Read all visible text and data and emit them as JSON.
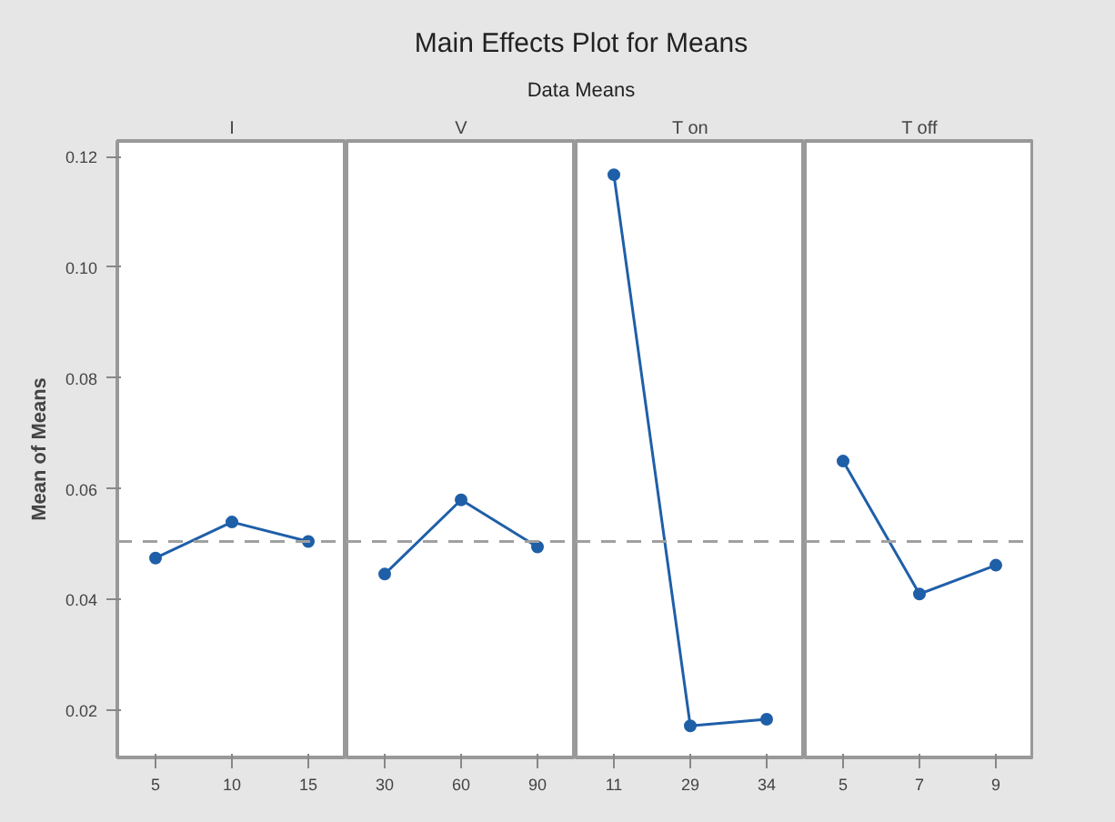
{
  "chart_data": [
    {
      "type": "line",
      "title": "I",
      "annotations": [
        "Main Effects Plot for Means",
        "Data Means"
      ],
      "ylabel": "Mean of Means",
      "categories": [
        "5",
        "10",
        "15"
      ],
      "series": [
        {
          "color": "#1f5fa8",
          "values": [
            0.0475,
            0.054,
            0.0505
          ]
        }
      ],
      "ylim": [
        0.0115,
        0.1228
      ],
      "yticks": [
        0.02,
        0.04,
        0.06,
        0.08,
        {
          "value": 0.1,
          "label": "0.10"
        },
        0.12
      ],
      "marker": "circle",
      "grid": false,
      "ref_lines": [
        {
          "axis": "y",
          "value": 0.0505,
          "color": "#a0a0a0",
          "line_style": "dashed"
        }
      ]
    },
    {
      "type": "line",
      "title": "V",
      "categories": [
        "30",
        "60",
        "90"
      ],
      "series": [
        {
          "color": "#1f5fa8",
          "values": [
            0.0446,
            0.058,
            0.0495
          ]
        }
      ],
      "ylim": [
        0.0115,
        0.1228
      ],
      "yticks": [
        0.02,
        0.04,
        0.06,
        0.08,
        0.1,
        0.12
      ],
      "tick_labels": "x",
      "marker": "circle",
      "grid": false,
      "ref_lines": [
        {
          "axis": "y",
          "value": 0.0505,
          "color": "#a0a0a0",
          "line_style": "dashed"
        }
      ]
    },
    {
      "type": "line",
      "title": "T on",
      "categories": [
        "11",
        "29",
        "34"
      ],
      "series": [
        {
          "color": "#1f5fa8",
          "values": [
            0.1167,
            0.0172,
            0.0184
          ]
        }
      ],
      "ylim": [
        0.0115,
        0.1228
      ],
      "yticks": [
        0.02,
        0.04,
        0.06,
        0.08,
        0.1,
        0.12
      ],
      "tick_labels": "x",
      "marker": "circle",
      "grid": false,
      "ref_lines": [
        {
          "axis": "y",
          "value": 0.0505,
          "color": "#a0a0a0",
          "line_style": "dashed"
        }
      ]
    },
    {
      "type": "line",
      "title": "T off",
      "categories": [
        "5",
        "7",
        "9"
      ],
      "series": [
        {
          "color": "#1f5fa8",
          "values": [
            0.065,
            0.041,
            0.0462
          ]
        }
      ],
      "ylim": [
        0.0115,
        0.1228
      ],
      "yticks": [
        0.02,
        0.04,
        0.06,
        0.08,
        0.1,
        0.12
      ],
      "tick_labels": "x",
      "marker": "circle",
      "grid": false,
      "ref_lines": [
        {
          "axis": "y",
          "value": 0.0505,
          "color": "#a0a0a0",
          "line_style": "dashed"
        }
      ]
    }
  ]
}
